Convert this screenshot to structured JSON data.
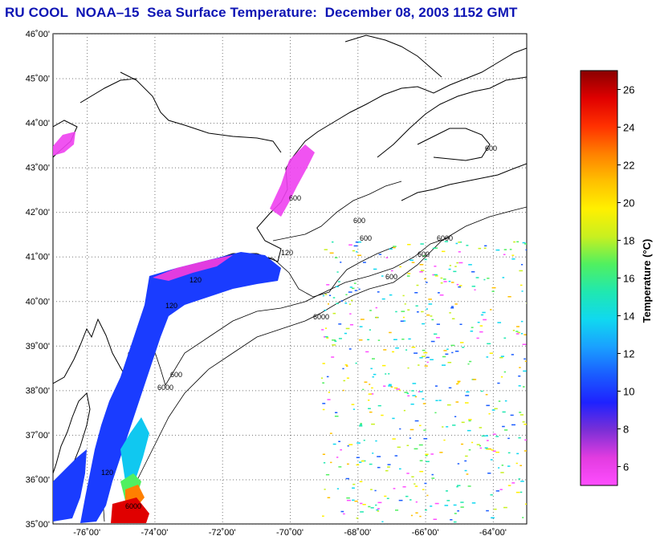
{
  "title": "RU COOL  NOAA–15  Sea Surface Temperature:  December 08, 2003 1152 GMT",
  "map": {
    "lon_range": [
      -77,
      -63
    ],
    "lat_range": [
      35,
      46
    ],
    "lat_labels": [
      "46˚00'",
      "45˚00'",
      "44˚00'",
      "43˚00'",
      "42˚00'",
      "41˚00'",
      "40˚00'",
      "39˚00'",
      "38˚00'",
      "37˚00'",
      "36˚00'",
      "35˚00'"
    ],
    "lon_labels": [
      "-76˚00'",
      "-74˚00'",
      "-72˚00'",
      "-70˚00'",
      "-68˚00'",
      "-66˚00'",
      "-64˚00'"
    ],
    "contour_labels": [
      "120",
      "120",
      "120",
      "600",
      "600",
      "600",
      "600",
      "600",
      "600",
      "6000",
      "6000",
      "6000",
      "120",
      "600",
      "6000"
    ]
  },
  "colorbar": {
    "label": "Temperature (°C)",
    "ticks": [
      "26",
      "24",
      "22",
      "20",
      "18",
      "16",
      "14",
      "12",
      "10",
      "8",
      "6"
    ],
    "range": [
      5,
      27
    ],
    "colors": [
      "#ff4dff",
      "#e23ce0",
      "#7b2fd6",
      "#1e22ff",
      "#1a5cff",
      "#1aa0ff",
      "#10d8f0",
      "#20e8b0",
      "#50f060",
      "#c8f020",
      "#fff000",
      "#ffc000",
      "#ff8000",
      "#ff3000",
      "#e00000",
      "#8a0000"
    ]
  }
}
